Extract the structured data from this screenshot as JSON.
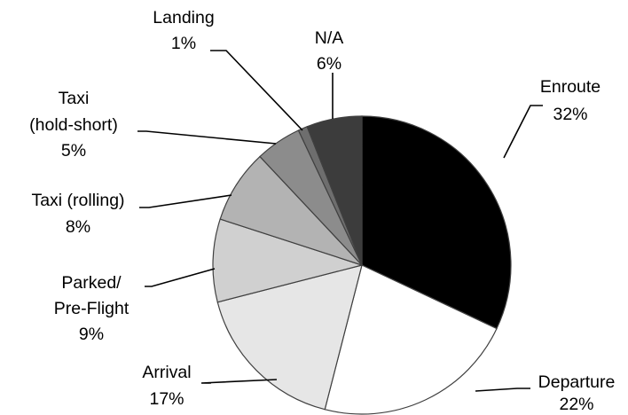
{
  "chart_data": {
    "type": "pie",
    "title": "",
    "slices": [
      {
        "name": "Enroute",
        "value": 32,
        "label": "32%",
        "color": "#000000"
      },
      {
        "name": "Departure",
        "value": 22,
        "label": "22%",
        "color": "#ffffff"
      },
      {
        "name": "Arrival",
        "value": 17,
        "label": "17%",
        "color": "#e6e6e6"
      },
      {
        "name": "Parked/ Pre-Flight",
        "value": 9,
        "label": "9%",
        "color": "#d0d0d0"
      },
      {
        "name": "Taxi (rolling)",
        "value": 8,
        "label": "8%",
        "color": "#b3b3b3"
      },
      {
        "name": "Taxi (hold-short)",
        "value": 5,
        "label": "5%",
        "color": "#8c8c8c"
      },
      {
        "name": "Landing",
        "value": 1,
        "label": "1%",
        "color": "#6e6e6e"
      },
      {
        "name": "N/A",
        "value": 6,
        "label": "6%",
        "color": "#3c3c3c"
      }
    ],
    "start": "12 o'clock",
    "direction": "clockwise",
    "legend": "none"
  }
}
